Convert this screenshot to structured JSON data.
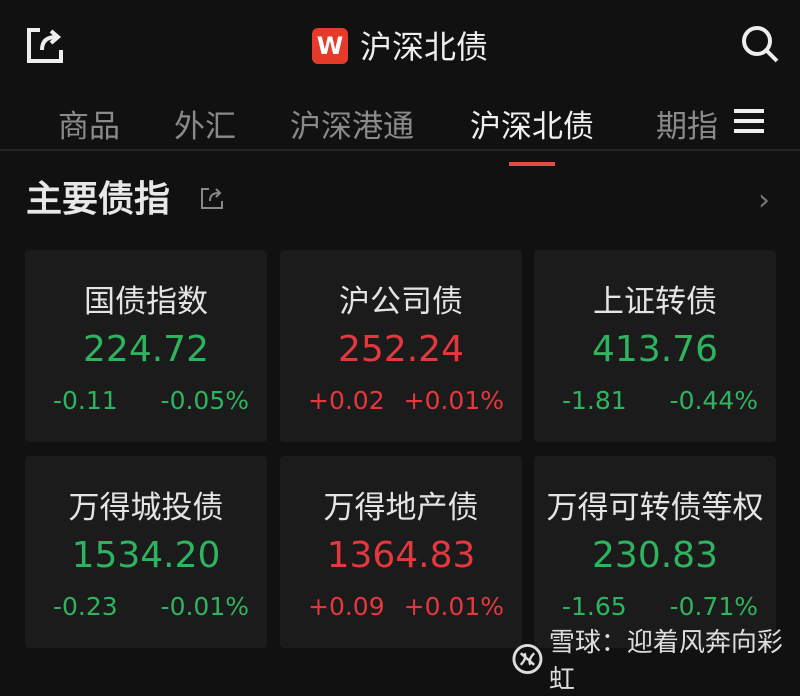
{
  "header": {
    "logo_letter": "W",
    "title": "沪深北债",
    "icons": [
      "share-icon",
      "search-icon"
    ]
  },
  "tabs": [
    {
      "label": "商品"
    },
    {
      "label": "外汇"
    },
    {
      "label": "沪深港通"
    },
    {
      "label": "沪深北债",
      "active": true
    },
    {
      "label": "期指"
    }
  ],
  "section": {
    "title": "主要债指"
  },
  "colors": {
    "up": "#e5373e",
    "down": "#2eb35f",
    "accent": "#e54b45"
  },
  "cards": [
    {
      "name": "国债指数",
      "value": "224.72",
      "change": "-0.11",
      "pct": "-0.05%",
      "dir": "down"
    },
    {
      "name": "沪公司债",
      "value": "252.24",
      "change": "+0.02",
      "pct": "+0.01%",
      "dir": "up"
    },
    {
      "name": "上证转债",
      "value": "413.76",
      "change": "-1.81",
      "pct": "-0.44%",
      "dir": "down"
    },
    {
      "name": "万得城投债",
      "value": "1534.20",
      "change": "-0.23",
      "pct": "-0.01%",
      "dir": "down"
    },
    {
      "name": "万得地产债",
      "value": "1364.83",
      "change": "+0.09",
      "pct": "+0.01%",
      "dir": "up"
    },
    {
      "name": "万得可转债等权",
      "value": "230.83",
      "change": "-1.65",
      "pct": "-0.71%",
      "dir": "down"
    }
  ],
  "watermark": "雪球：迎着风奔向彩虹"
}
